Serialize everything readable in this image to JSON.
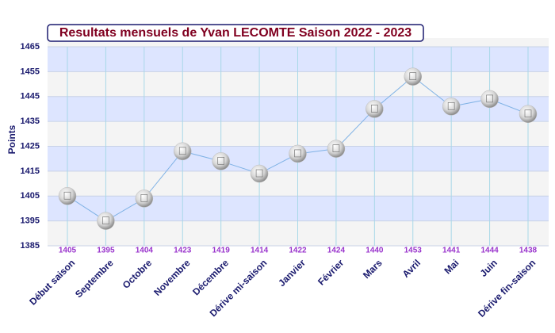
{
  "chart_data": {
    "type": "line",
    "title": "Resultats mensuels de Yvan LECOMTE Saison 2022 - 2023",
    "y_label": "Points",
    "categories": [
      "Début saison",
      "Septembre",
      "Octobre",
      "Novembre",
      "Décembre",
      "Dérive mi-saison",
      "Janvier",
      "Février",
      "Mars",
      "Avril",
      "Mai",
      "Juin",
      "Dérive fin-saison"
    ],
    "values": [
      1405,
      1395,
      1404,
      1423,
      1419,
      1414,
      1422,
      1424,
      1440,
      1453,
      1441,
      1444,
      1438
    ],
    "color": "#7fb2e5",
    "ylim": [
      1385,
      1465
    ],
    "yticks": [
      1385,
      1395,
      1405,
      1415,
      1425,
      1435,
      1445,
      1455,
      1465
    ],
    "grid": true
  }
}
